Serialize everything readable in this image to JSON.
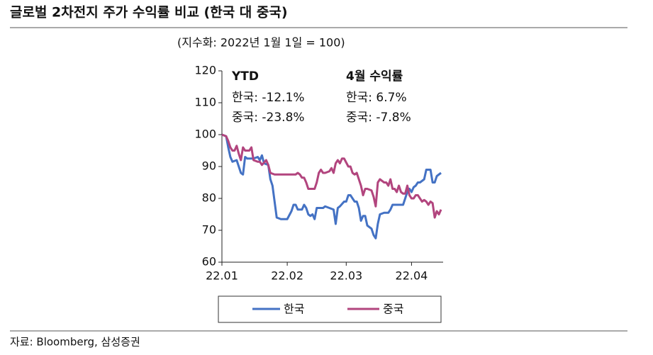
{
  "chart_data": {
    "type": "line",
    "title": "글로벌 2차전지 주가 수익률 비교 (한국 대 중국)",
    "subtitle": "(지수화: 2022년 1월 1일 = 100)",
    "annotations": [
      "YTD",
      "한국: -12.1%",
      "중국: -23.8%",
      "4월 수익률",
      "한국: 6.7%",
      "중국: -7.8%"
    ],
    "source": "자료: Bloomberg, 삼성증권",
    "xlim": [
      0,
      105
    ],
    "ylim": [
      60,
      120
    ],
    "xticks": [
      {
        "value": 0,
        "label": "22.01"
      },
      {
        "value": 31,
        "label": "22.02"
      },
      {
        "value": 59,
        "label": "22.03"
      },
      {
        "value": 90,
        "label": "22.04"
      }
    ],
    "yticks": [
      60,
      70,
      80,
      90,
      100,
      110,
      120
    ],
    "grid": false,
    "series": [
      {
        "name": "한국",
        "color": "#4472c4",
        "x": [
          0,
          2,
          3,
          4,
          5,
          7,
          8,
          9,
          10,
          11,
          12,
          15,
          17,
          18,
          19,
          20,
          22,
          23,
          24,
          25,
          26,
          28,
          31,
          33,
          34,
          35,
          36,
          38,
          39,
          40,
          41,
          42,
          43,
          44,
          45,
          48,
          49,
          51,
          53,
          54,
          55,
          56,
          58,
          59,
          60,
          61,
          63,
          64,
          65,
          66,
          67,
          68,
          69,
          71,
          72,
          73,
          74,
          75,
          77,
          79,
          80,
          81,
          84,
          86,
          87,
          88,
          89,
          90,
          91,
          92,
          93,
          94,
          96,
          97,
          99,
          100,
          101,
          102,
          104
        ],
        "values": [
          100,
          99.5,
          96,
          93,
          91.5,
          92,
          90,
          88,
          87.5,
          93,
          92.5,
          92.5,
          93,
          92,
          93.5,
          91,
          90.5,
          86,
          84,
          79,
          74,
          73.5,
          73.5,
          76,
          78,
          78,
          76.5,
          76.5,
          78,
          77,
          75,
          74.5,
          75,
          73.5,
          77,
          77,
          77.5,
          77,
          76.5,
          72,
          77,
          77.5,
          79,
          79,
          81,
          81,
          79,
          79,
          77,
          73,
          74.5,
          74.5,
          71.5,
          70.5,
          68.5,
          67.5,
          72,
          75,
          75.5,
          75.5,
          76.5,
          78,
          78,
          78,
          80,
          82,
          83,
          82,
          83.5,
          84,
          85,
          85,
          86,
          89,
          89,
          85,
          85,
          87,
          88
        ]
      },
      {
        "name": "중국",
        "color": "#b2457e",
        "x": [
          0,
          2,
          3,
          4,
          5,
          6,
          7,
          8,
          9,
          10,
          11,
          13,
          14,
          15,
          17,
          18,
          19,
          21,
          22,
          23,
          25,
          28,
          31,
          35,
          36,
          37,
          38,
          39,
          40,
          41,
          43,
          44,
          45,
          46,
          47,
          48,
          49,
          51,
          52,
          53,
          54,
          55,
          56,
          57,
          58,
          60,
          61,
          62,
          63,
          64,
          65,
          66,
          67,
          68,
          69,
          71,
          72,
          73,
          74,
          75,
          76,
          77,
          78,
          79,
          80,
          81,
          82,
          83,
          84,
          85,
          86,
          87,
          88,
          89,
          90,
          91,
          92,
          93,
          94,
          95,
          96,
          97,
          98,
          99,
          100,
          101,
          102,
          103,
          104
        ],
        "values": [
          100,
          99.5,
          98,
          96,
          95,
          95,
          96.5,
          94,
          92,
          96,
          95,
          95,
          96,
          92,
          91.5,
          91.5,
          90.5,
          92,
          90.5,
          88,
          87.5,
          87.5,
          87.5,
          87.5,
          88,
          87.5,
          86.5,
          86.5,
          85,
          83,
          83,
          83,
          85,
          88,
          89,
          88,
          88,
          88.5,
          89.5,
          88,
          91,
          92,
          91,
          92.5,
          92.5,
          90,
          90,
          88,
          87.5,
          88,
          86,
          84,
          81,
          83,
          83,
          82.5,
          80.5,
          77.5,
          85,
          86,
          85.5,
          85,
          85,
          84,
          86,
          83,
          83,
          82,
          84,
          82,
          81.5,
          81.5,
          84,
          81,
          80,
          80,
          81,
          81,
          80,
          79,
          79.5,
          79,
          78,
          79,
          78.5,
          74,
          76,
          75,
          76.5
        ]
      }
    ]
  }
}
